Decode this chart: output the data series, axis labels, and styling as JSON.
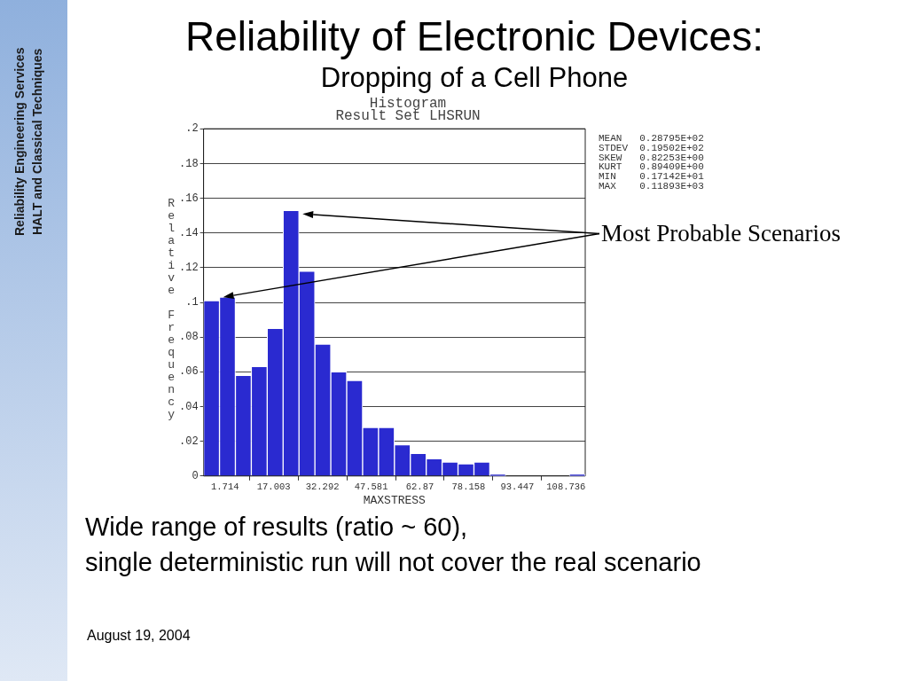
{
  "chart_data": {
    "type": "histogram",
    "title": "Reliability of Electronic Devices:",
    "subtitle": "Dropping of a Cell Phone",
    "xlabel": "MAXSTRESS",
    "ylabel": "Relative Frequency",
    "bins": [
      -5.0,
      -0.01,
      4.98,
      9.97,
      14.96,
      19.95,
      24.94,
      29.93,
      34.92,
      39.91,
      44.9,
      49.89,
      54.88,
      59.87,
      64.86,
      69.85,
      74.84,
      79.83,
      84.82,
      89.81,
      94.8,
      99.79,
      104.78,
      109.77,
      114.76
    ],
    "values": [
      0.101,
      0.103,
      0.058,
      0.063,
      0.085,
      0.153,
      0.118,
      0.076,
      0.06,
      0.055,
      0.028,
      0.028,
      0.018,
      0.013,
      0.01,
      0.008,
      0.007,
      0.008,
      0.001,
      0,
      0,
      0,
      0,
      0.001
    ],
    "color": "#2a2ad0",
    "xlim": [
      -5.0,
      114.76
    ],
    "xticks": [
      1.714,
      17.003,
      32.292,
      47.581,
      62.87,
      78.158,
      93.447,
      108.736
    ],
    "ylim": [
      0,
      0.2
    ],
    "yticks": [
      {
        "value": 0,
        "label": "0"
      },
      {
        "value": 0.02,
        "label": ".02"
      },
      {
        "value": 0.04,
        "label": ".04"
      },
      {
        "value": 0.06,
        "label": ".06"
      },
      {
        "value": 0.08,
        "label": ".08"
      },
      {
        "value": 0.1,
        "label": ".1"
      },
      {
        "value": 0.12,
        "label": ".12"
      },
      {
        "value": 0.14,
        "label": ".14"
      },
      {
        "value": 0.16,
        "label": ".16"
      },
      {
        "value": 0.18,
        "label": ".18"
      },
      {
        "value": 0.2,
        "label": ".2"
      }
    ],
    "grid": "y",
    "annotations": [
      "Histogram",
      "Result Set LHSRUN",
      "MEAN   0.28795E+02",
      "STDEV  0.19502E+02",
      "SKEW   0.82253E+00",
      "KURT   0.89409E+00",
      "MIN    0.17142E+01",
      "MAX    0.11893E+03",
      "Most Probable Scenarios",
      "Wide range of results (ratio ~ 60),",
      "single deterministic run will not cover the real scenario",
      "August 19, 2004",
      "Reliability Engineering Services",
      "HALT and Classical Techniques"
    ]
  }
}
